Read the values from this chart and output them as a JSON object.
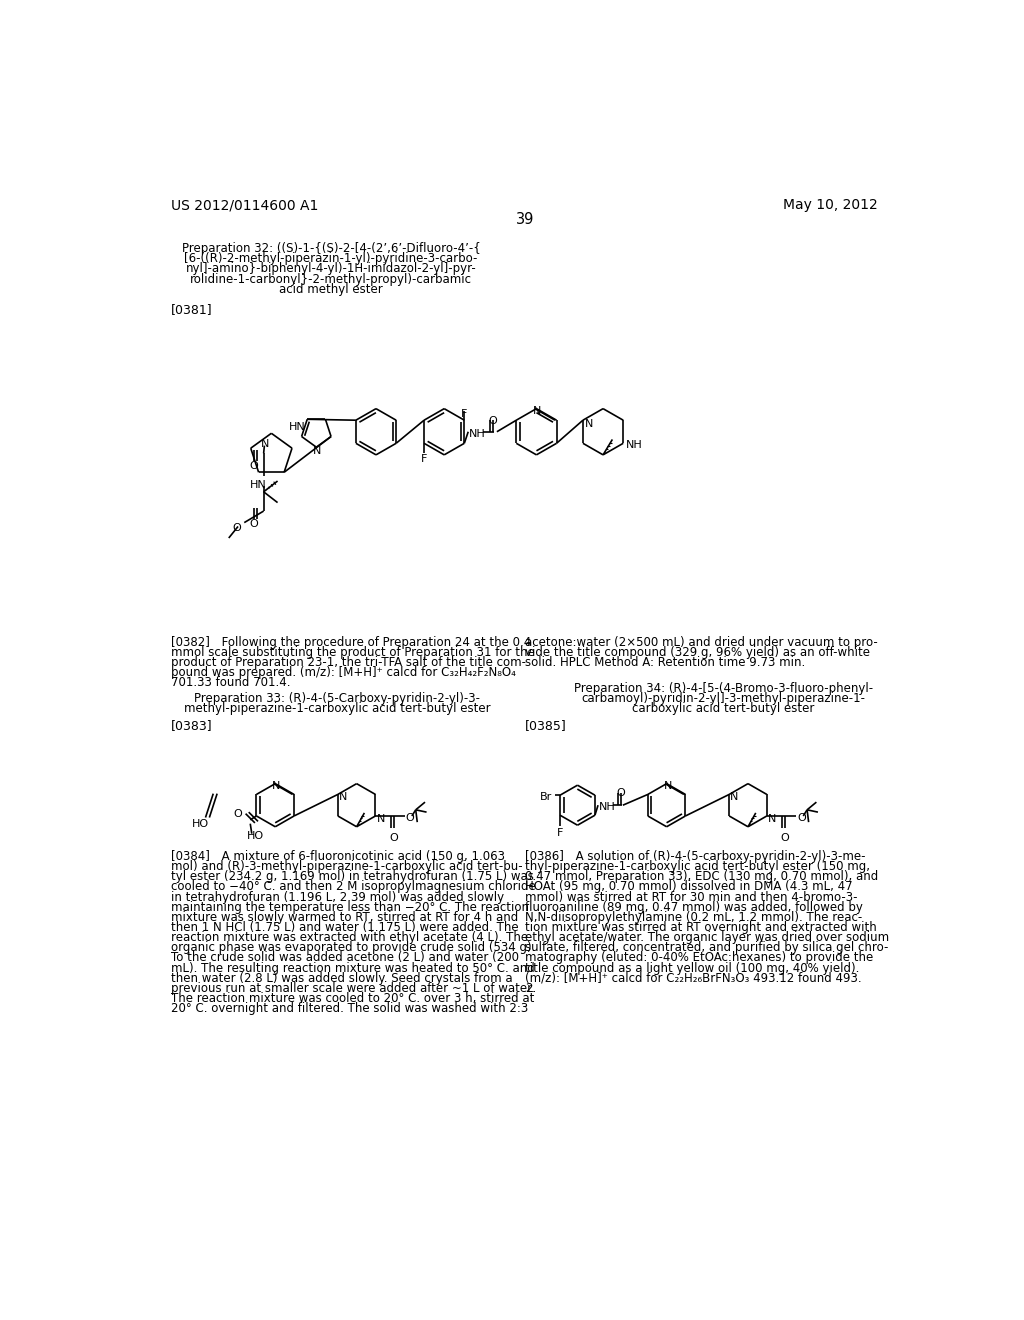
{
  "bg_color": "#ffffff",
  "header_left": "US 2012/0114600 A1",
  "header_right": "May 10, 2012",
  "page_number": "39",
  "prep32_lines": [
    "Preparation 32: ((S)-1-{(S)-2-[4-(2’,6’-Difluoro-4’-{",
    "[6-((R)-2-methyl-piperazin-1-yl)-pyridine-3-carbo-",
    "nyl]-amino}-biphenyl-4-yl)-1H-imidazol-2-yl]-pyr-",
    "rolidine-1-carbonyl}-2-methyl-propyl)-carbamic",
    "acid methyl ester"
  ],
  "ref381": "[0381]",
  "para382_left": [
    "[0382] Following the procedure of Preparation 24 at the 0.4",
    "mmol scale substituting the product of Preparation 31 for the",
    "product of Preparation 23-1, the tri-TFA salt of the title com-",
    "pound was prepared. (m/z): [M+H]⁺ calcd for C₃₂H₄₂F₂N₈O₄",
    "701.33 found 701.4."
  ],
  "para382_right": [
    "acetone:water (2×500 mL) and dried under vacuum to pro-",
    "vide the title compound (329 g, 96% yield) as an off-white",
    "solid. HPLC Method A: Retention time 9.73 min."
  ],
  "prep33_lines": [
    "Preparation 33: (R)-4-(5-Carboxy-pyridin-2-yl)-3-",
    "methyl-piperazine-1-carboxylic acid tert-butyl ester"
  ],
  "prep34_lines": [
    "Preparation 34: (R)-4-[5-(4-Bromo-3-fluoro-phenyl-",
    "carbamoyl)-pyridin-2-yl]-3-methyl-piperazine-1-",
    "carboxylic acid tert-butyl ester"
  ],
  "ref383": "[0383]",
  "ref385": "[0385]",
  "para384": [
    "[0384] A mixture of 6-fluoronicotinic acid (150 g, 1.063",
    "mol) and (R)-3-methyl-piperazine-1-carboxylic acid tert-bu-",
    "tyl ester (234.2 g, 1.169 mol) in tetrahydrofuran (1.75 L) was",
    "cooled to −40° C. and then 2 M isopropylmagnesium chloride",
    "in tetrahydrofuran (1.196 L, 2.39 mol) was added slowly",
    "maintaining the temperature less than −20° C. The reaction",
    "mixture was slowly warmed to RT, stirred at RT for 4 h and",
    "then 1 N HCl (1.75 L) and water (1.175 L) were added. The",
    "reaction mixture was extracted with ethyl acetate (4 L). The",
    "organic phase was evaporated to provide crude solid (534 g).",
    "To the crude solid was added acetone (2 L) and water (200",
    "mL). The resulting reaction mixture was heated to 50° C. and",
    "then water (2.8 L) was added slowly. Seed crystals from a",
    "previous run at smaller scale were added after ~1 L of water.",
    "The reaction mixture was cooled to 20° C. over 3 h, stirred at",
    "20° C. overnight and filtered. The solid was washed with 2:3"
  ],
  "para386": [
    "[0386] A solution of (R)-4-(5-carboxy-pyridin-2-yl)-3-me-",
    "thyl-piperazine-1-carboxylic acid tert-butyl ester (150 mg,",
    "0.47 mmol, Preparation 33), EDC (130 mg, 0.70 mmol), and",
    "HOAt (95 mg, 0.70 mmol) dissolved in DMA (4.3 mL, 47",
    "mmol) was stirred at RT for 30 min and then 4-bromo-3-",
    "fluoroaniline (89 mg, 0.47 mmol) was added, followed by",
    "N,N-diisopropylethylamine (0.2 mL, 1.2 mmol). The reac-",
    "tion mixture was stirred at RT overnight and extracted with",
    "ethyl acetate/water. The organic layer was dried over sodium",
    "sulfate, filtered, concentrated, and purified by silica gel chro-",
    "matography (eluted: 0-40% EtOAc:hexanes) to provide the",
    "title compound as a light yellow oil (100 mg, 40% yield).",
    "(m/z): [M+H]⁺ calcd for C₂₂H₂₆BrFN₃O₃ 493.12 found 493.",
    "2."
  ]
}
